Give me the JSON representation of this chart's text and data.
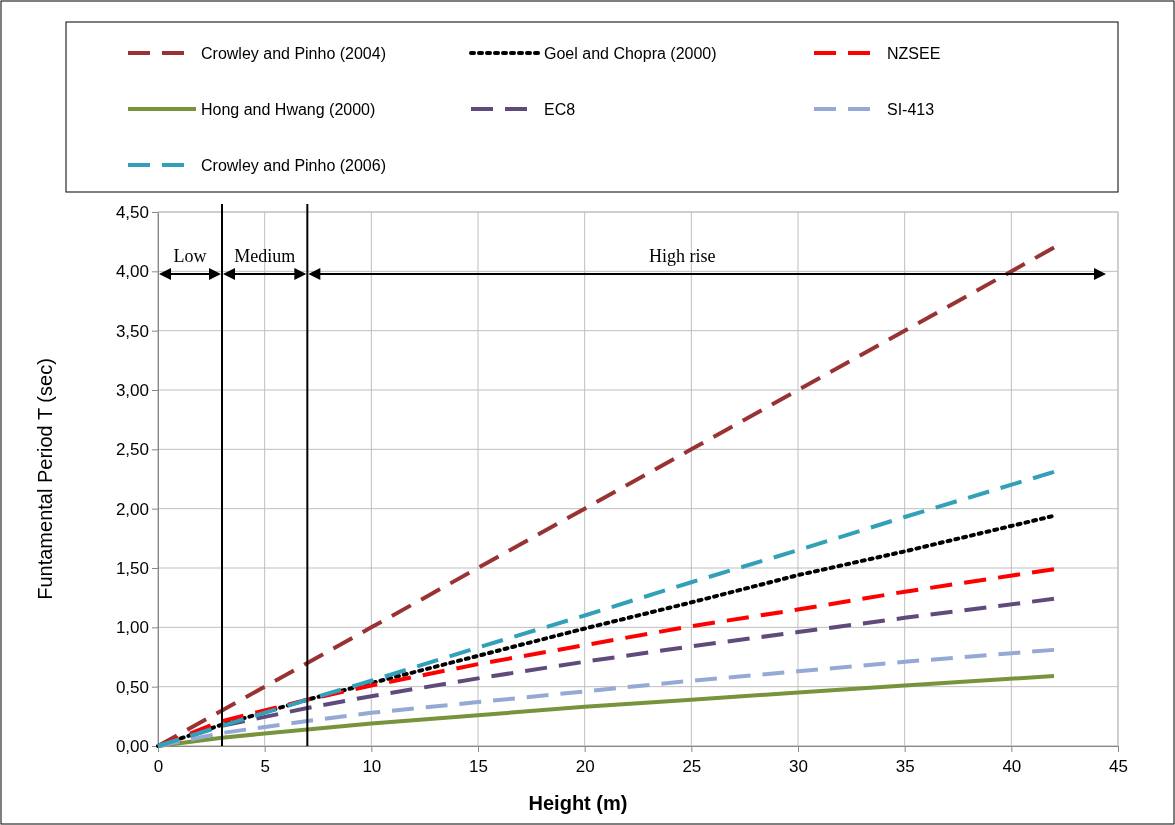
{
  "chart_data": {
    "type": "line",
    "xlabel": "Height (m)",
    "ylabel": "Funtamental Period T (sec)",
    "x": [
      0,
      3,
      7,
      10,
      15,
      20,
      25,
      30,
      35,
      42
    ],
    "xlim": [
      0,
      45
    ],
    "xticks": [
      0,
      5,
      10,
      15,
      20,
      25,
      30,
      35,
      40,
      45
    ],
    "ylim": [
      0,
      4.5
    ],
    "yticks": [
      {
        "value": 0,
        "label": "0,00"
      },
      {
        "value": 0.5,
        "label": "0,50"
      },
      {
        "value": 1,
        "label": "1,00"
      },
      {
        "value": 1.5,
        "label": "1,50"
      },
      {
        "value": 2,
        "label": "2,00"
      },
      {
        "value": 2.5,
        "label": "2,50"
      },
      {
        "value": 3,
        "label": "3,00"
      },
      {
        "value": 3.5,
        "label": "3,50"
      },
      {
        "value": 4,
        "label": "4,00"
      },
      {
        "value": 4.5,
        "label": "4,50"
      }
    ],
    "grid": true,
    "legend": "top",
    "marker": "none",
    "series": [
      {
        "name": "Crowley and Pinho (2004)",
        "color": "#993333",
        "line_style": "dashed",
        "values": [
          0,
          0.3,
          0.7,
          1.0,
          1.5,
          2.0,
          2.5,
          3.0,
          3.5,
          4.2
        ]
      },
      {
        "name": "Goel and Chopra (2000)",
        "color": "#000000",
        "line_style": "dotted",
        "values": [
          0,
          0.18,
          0.39,
          0.53,
          0.76,
          0.99,
          1.21,
          1.44,
          1.64,
          1.94
        ]
      },
      {
        "name": "NZSEE",
        "color": "#ff0000",
        "line_style": "dashed",
        "values": [
          0,
          0.21,
          0.39,
          0.51,
          0.69,
          0.85,
          1.01,
          1.15,
          1.3,
          1.49
        ]
      },
      {
        "name": "Hong and Hwang (2000)",
        "color": "#77933c",
        "line_style": "solid",
        "values": [
          0,
          0.07,
          0.14,
          0.19,
          0.26,
          0.33,
          0.39,
          0.45,
          0.51,
          0.59
        ]
      },
      {
        "name": "EC8",
        "color": "#604a7b",
        "line_style": "dashed",
        "values": [
          0,
          0.17,
          0.32,
          0.42,
          0.57,
          0.71,
          0.84,
          0.96,
          1.08,
          1.24
        ]
      },
      {
        "name": "SI-413",
        "color": "#95a9d5",
        "line_style": "dashed",
        "values": [
          0,
          0.11,
          0.21,
          0.28,
          0.37,
          0.46,
          0.55,
          0.63,
          0.71,
          0.81
        ]
      },
      {
        "name": "Crowley and Pinho (2006)",
        "color": "#31a0b8",
        "line_style": "dashed",
        "values": [
          0,
          0.17,
          0.39,
          0.55,
          0.83,
          1.1,
          1.38,
          1.65,
          1.93,
          2.31
        ]
      }
    ],
    "ref_lines": [
      {
        "axis": "x",
        "value": 3,
        "color": "#000000"
      },
      {
        "axis": "x",
        "value": 7,
        "color": "#000000"
      }
    ],
    "annotations": [
      "Low",
      "Medium",
      "High rise"
    ]
  }
}
